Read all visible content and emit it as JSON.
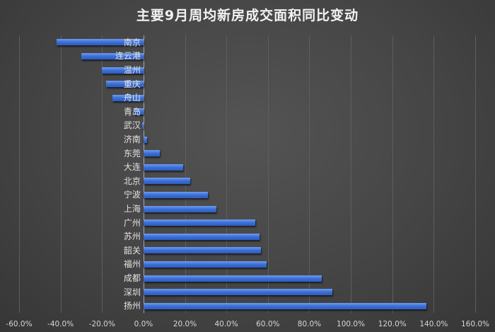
{
  "chart_data": {
    "type": "bar",
    "orientation": "horizontal",
    "title": "主要9月周均新房成交面积同比变动",
    "xlabel": "",
    "ylabel": "",
    "xlim": [
      -60,
      160
    ],
    "x_ticks": [
      "-60.0%",
      "-40.0%",
      "-20.0%",
      "0.0%",
      "20.0%",
      "40.0%",
      "60.0%",
      "80.0%",
      "100.0%",
      "120.0%",
      "140.0%",
      "160.0%"
    ],
    "grid": true,
    "legend": null,
    "categories": [
      "南京",
      "连云港",
      "温州",
      "重庆",
      "舟山",
      "青岛",
      "武汉",
      "济南",
      "东莞",
      "大连",
      "北京",
      "宁波",
      "上海",
      "广州",
      "苏州",
      "韶关",
      "福州",
      "成都",
      "深圳",
      "扬州"
    ],
    "values": [
      -42.0,
      -30.0,
      -20.0,
      -18.0,
      -15.0,
      -4.5,
      -0.7,
      1.7,
      8.0,
      19.0,
      22.5,
      31.0,
      35.0,
      54.0,
      56.0,
      56.5,
      59.5,
      86.0,
      91.0,
      136.5
    ],
    "unit": "%",
    "bar_color": "#3f73d9"
  }
}
